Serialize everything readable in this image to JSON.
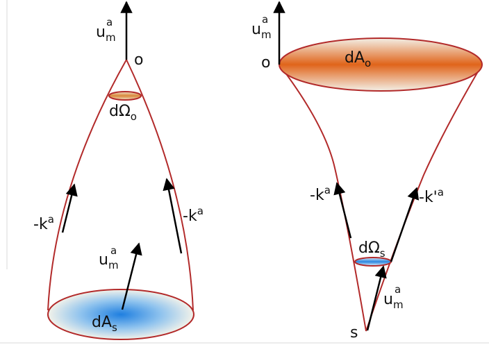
{
  "colors": {
    "cone_outline": "#b22a2a",
    "arrow": "#000000",
    "observer_area_center": "#e0641a",
    "source_area_center": "#1f7fe0"
  },
  "left": {
    "um_base": "u",
    "um_sub": "m",
    "um_sup": "a",
    "o": "o",
    "dOmega_base": "dΩ",
    "dOmega_sub": "o",
    "k_left_base": "-k",
    "k_left_sup": "a",
    "k_right_base": "-k",
    "k_right_sup": "a",
    "um2_base": "u",
    "um2_sub": "m",
    "um2_sup": "a",
    "dA_base": "dA",
    "dA_sub": "s"
  },
  "right": {
    "um_base": "u",
    "um_sub": "m",
    "um_sup": "a",
    "o": "o",
    "dA_base": "dA",
    "dA_sub": "o",
    "k_left_base": "-k",
    "k_left_sup": "a",
    "k_right_base": "-k'",
    "k_right_sup": "a",
    "dOmega_base": "dΩ",
    "dOmega_sub": "s",
    "um2_base": "u",
    "um2_sub": "m",
    "um2_sup": "a",
    "s": "s"
  }
}
